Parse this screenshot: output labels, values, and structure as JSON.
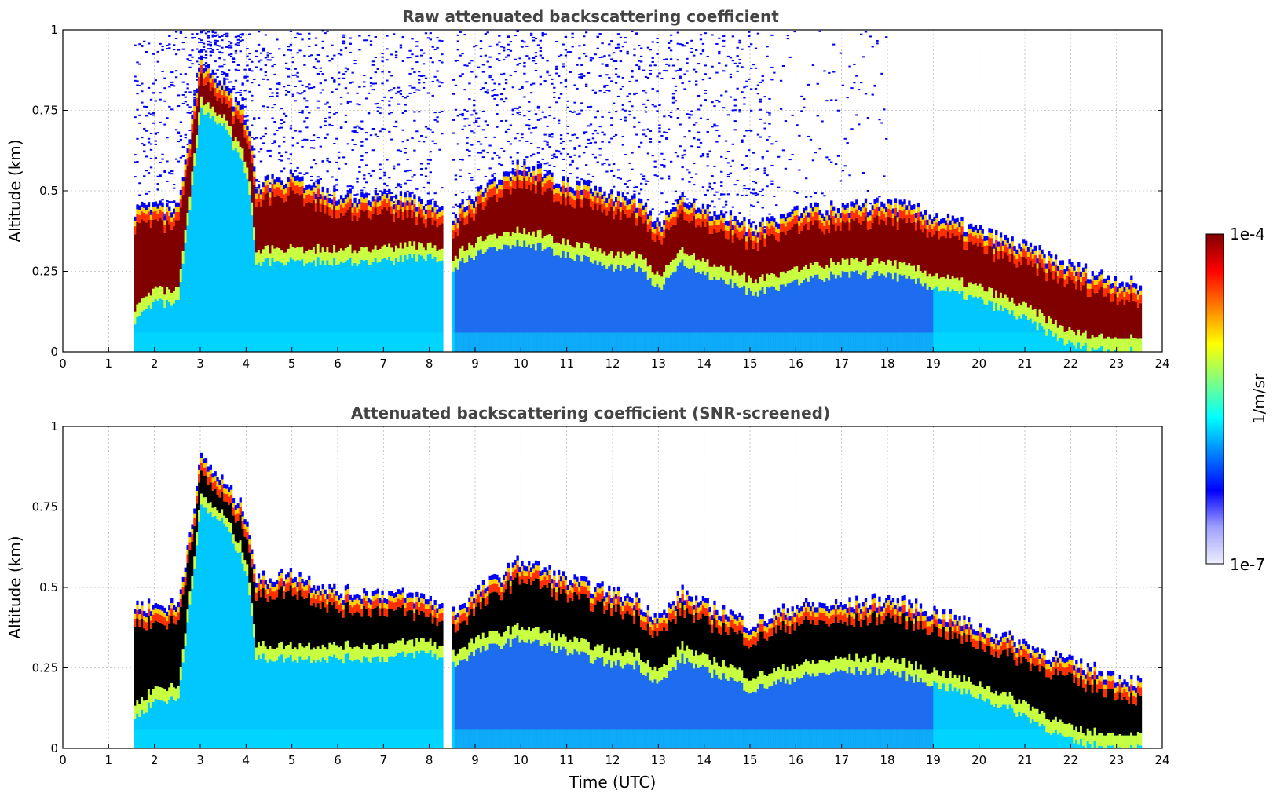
{
  "chart_data": [
    {
      "type": "heatmap",
      "id": "raw",
      "title": "Raw attenuated backscattering coefficient",
      "xlabel": "",
      "ylabel": "Altitude (km)",
      "xlim": [
        0,
        24
      ],
      "ylim": [
        0,
        1
      ],
      "xticks": [
        "0",
        "1",
        "2",
        "3",
        "4",
        "5",
        "6",
        "7",
        "8",
        "9",
        "10",
        "11",
        "12",
        "13",
        "14",
        "15",
        "16",
        "17",
        "18",
        "19",
        "20",
        "21",
        "22",
        "23",
        "24"
      ],
      "yticks": [
        "0",
        "0.25",
        "0.5",
        "0.75",
        "1"
      ],
      "grid": true,
      "screened": false,
      "data_time_range": [
        1.55,
        23.55
      ],
      "gap_time_range": [
        8.25,
        8.45
      ],
      "aerosol_layer": {
        "time": [
          1.6,
          2.0,
          2.5,
          3.0,
          3.5,
          4.0,
          4.2,
          5.0,
          6.0,
          7.0,
          8.0,
          8.2,
          8.5,
          9.0,
          10.0,
          11.0,
          12.0,
          12.5,
          13.0,
          13.5,
          14.0,
          14.5,
          15.0,
          16.0,
          17.0,
          18.0,
          19.0,
          20.0,
          21.0,
          22.0,
          23.0,
          23.5
        ],
        "top_km": [
          0.42,
          0.42,
          0.42,
          0.88,
          0.8,
          0.7,
          0.5,
          0.52,
          0.46,
          0.46,
          0.44,
          0.42,
          0.4,
          0.46,
          0.56,
          0.5,
          0.46,
          0.44,
          0.38,
          0.46,
          0.42,
          0.4,
          0.36,
          0.42,
          0.42,
          0.44,
          0.4,
          0.35,
          0.3,
          0.24,
          0.2,
          0.18
        ],
        "bottom_km": [
          0.1,
          0.15,
          0.15,
          0.75,
          0.7,
          0.55,
          0.28,
          0.28,
          0.28,
          0.28,
          0.3,
          0.28,
          0.26,
          0.3,
          0.34,
          0.3,
          0.26,
          0.26,
          0.2,
          0.28,
          0.24,
          0.22,
          0.18,
          0.22,
          0.24,
          0.24,
          0.2,
          0.16,
          0.1,
          0.02,
          0.0,
          0.0
        ]
      }
    },
    {
      "type": "heatmap",
      "id": "screened",
      "title": "Attenuated backscattering coefficient (SNR-screened)",
      "xlabel": "Time (UTC)",
      "ylabel": "Altitude (km)",
      "xlim": [
        0,
        24
      ],
      "ylim": [
        0,
        1
      ],
      "xticks": [
        "0",
        "1",
        "2",
        "3",
        "4",
        "5",
        "6",
        "7",
        "8",
        "9",
        "10",
        "11",
        "12",
        "13",
        "14",
        "15",
        "16",
        "17",
        "18",
        "19",
        "20",
        "21",
        "22",
        "23",
        "24"
      ],
      "yticks": [
        "0",
        "0.25",
        "0.5",
        "0.75",
        "1"
      ],
      "grid": true,
      "screened": true,
      "data_time_range": [
        1.55,
        23.55
      ],
      "gap_time_range": [
        8.25,
        8.45
      ],
      "aerosol_layer": {
        "time": [
          1.6,
          2.0,
          2.5,
          3.0,
          3.5,
          4.0,
          4.2,
          5.0,
          6.0,
          7.0,
          8.0,
          8.2,
          8.5,
          9.0,
          10.0,
          11.0,
          12.0,
          12.5,
          13.0,
          13.5,
          14.0,
          14.5,
          15.0,
          16.0,
          17.0,
          18.0,
          19.0,
          20.0,
          21.0,
          22.0,
          23.0,
          23.5
        ],
        "top_km": [
          0.42,
          0.42,
          0.42,
          0.88,
          0.8,
          0.7,
          0.5,
          0.52,
          0.46,
          0.46,
          0.44,
          0.42,
          0.4,
          0.46,
          0.56,
          0.5,
          0.46,
          0.44,
          0.38,
          0.46,
          0.42,
          0.4,
          0.36,
          0.42,
          0.42,
          0.44,
          0.4,
          0.35,
          0.3,
          0.24,
          0.2,
          0.18
        ],
        "bottom_km": [
          0.1,
          0.15,
          0.15,
          0.75,
          0.7,
          0.55,
          0.28,
          0.28,
          0.28,
          0.28,
          0.3,
          0.28,
          0.26,
          0.3,
          0.34,
          0.3,
          0.26,
          0.26,
          0.2,
          0.28,
          0.24,
          0.22,
          0.18,
          0.22,
          0.24,
          0.24,
          0.2,
          0.16,
          0.1,
          0.02,
          0.0,
          0.0
        ]
      }
    }
  ],
  "colorbar": {
    "label": "1/m/sr",
    "max_label": "1e-4",
    "min_label": "1e-7",
    "colors": [
      "#eeeeff",
      "#a0a0ff",
      "#0000ff",
      "#0080ff",
      "#00ffff",
      "#80ff80",
      "#ffff00",
      "#ff8000",
      "#ff0000",
      "#800000"
    ]
  },
  "colors": {
    "grid": "#bbbbbb",
    "layer_core_raw": "#800000",
    "layer_core_screened": "#000000",
    "background_low": "#1e6cf0",
    "background_mid": "#00c8ff",
    "noise": "#0000ff"
  }
}
